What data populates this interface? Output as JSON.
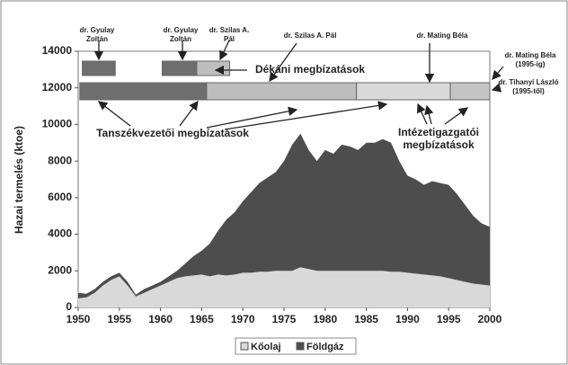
{
  "chart_data": {
    "type": "stacked_area",
    "y_label": "Hazai termelés (ktoe)",
    "x": [
      1950,
      1951,
      1952,
      1953,
      1954,
      1955,
      1956,
      1957,
      1958,
      1959,
      1960,
      1961,
      1962,
      1963,
      1964,
      1965,
      1966,
      1967,
      1968,
      1969,
      1970,
      1971,
      1972,
      1973,
      1974,
      1975,
      1976,
      1977,
      1978,
      1979,
      1980,
      1981,
      1982,
      1983,
      1984,
      1985,
      1986,
      1987,
      1988,
      1989,
      1990,
      1991,
      1992,
      1993,
      1994,
      1995,
      1996,
      1997,
      1998,
      1999,
      2000
    ],
    "series": [
      {
        "name": "Kőolaj",
        "color": "#d9d9d9",
        "values": [
          500,
          550,
          800,
          1200,
          1500,
          1700,
          1200,
          600,
          800,
          1000,
          1200,
          1400,
          1600,
          1700,
          1750,
          1800,
          1700,
          1800,
          1750,
          1800,
          1900,
          1900,
          1950,
          1950,
          2000,
          2000,
          2000,
          2200,
          2100,
          2000,
          2000,
          2000,
          2000,
          2000,
          2000,
          2000,
          2000,
          2000,
          1950,
          1950,
          1900,
          1850,
          1800,
          1750,
          1700,
          1600,
          1500,
          1400,
          1300,
          1250,
          1200
        ]
      },
      {
        "name": "Földgáz",
        "color": "#4d4d4d",
        "values": [
          300,
          200,
          200,
          200,
          200,
          200,
          200,
          100,
          200,
          200,
          200,
          300,
          400,
          700,
          1050,
          1300,
          1800,
          2400,
          3050,
          3400,
          3900,
          4400,
          4850,
          5150,
          5400,
          6000,
          6900,
          7300,
          6500,
          6000,
          6600,
          6400,
          6900,
          6800,
          6600,
          7000,
          7000,
          7200,
          7050,
          6050,
          5300,
          5150,
          4900,
          5150,
          5100,
          5100,
          4700,
          4200,
          3700,
          3350,
          3200
        ]
      }
    ],
    "xlim": [
      1950,
      2000
    ],
    "xticks": [
      1950,
      1955,
      1960,
      1965,
      1970,
      1975,
      1980,
      1985,
      1990,
      1995,
      2000
    ],
    "ylim": [
      0,
      14000
    ],
    "yticks": [
      0,
      2000,
      4000,
      6000,
      8000,
      10000,
      12000,
      14000
    ],
    "grid": false,
    "legend": "bottom",
    "appointment_bars": [
      {
        "row": "dekani",
        "start": 1950.5,
        "end": 1954.5,
        "color": "#6e6e6e"
      },
      {
        "row": "dekani",
        "start": 1960.2,
        "end": 1964.4,
        "color": "#6e6e6e"
      },
      {
        "row": "dekani",
        "start": 1964.4,
        "end": 1968.4,
        "color": "#bdbdbd"
      },
      {
        "row": "tanszek",
        "start": 1950.2,
        "end": 1965.6,
        "color": "#6e6e6e"
      },
      {
        "row": "tanszek",
        "start": 1965.6,
        "end": 1983.8,
        "color": "#bdbdbd"
      },
      {
        "row": "tanszek",
        "start": 1983.8,
        "end": 1995.2,
        "color": "#d9d9d9"
      },
      {
        "row": "tanszek",
        "start": 1995.2,
        "end": 2000,
        "color": "#c4c4c4"
      }
    ],
    "person_labels": [
      [
        "dr. Gyulay",
        "Zoltán"
      ],
      [
        "dr. Gyulay",
        "Zoltán"
      ],
      [
        "dr. Szilas A.",
        "Pál"
      ],
      [
        "dr. Szilas A. Pál"
      ],
      [
        "dr. Mating Béla"
      ],
      [
        "dr. Mating Béla",
        "(1995-ig)"
      ],
      [
        "dr. Tihanyi László",
        "(1995-től)"
      ]
    ],
    "annotations": [
      [
        "Dékáni megbízatások"
      ],
      [
        "Tanszékvezetői megbízatások"
      ],
      [
        "Intézetigazgatói",
        "megbízatások"
      ]
    ]
  }
}
